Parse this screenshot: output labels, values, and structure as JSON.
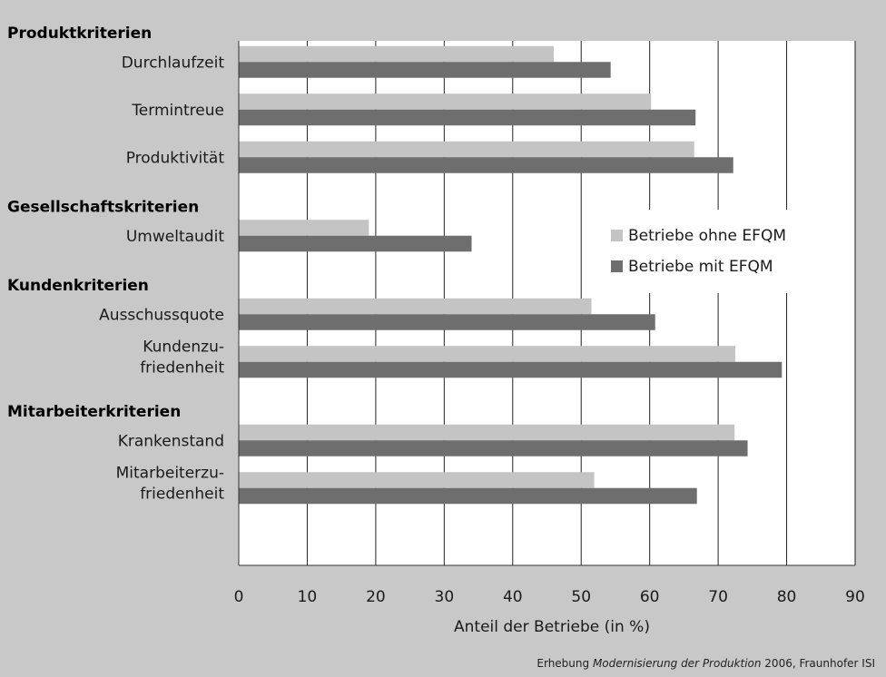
{
  "chart_data": {
    "type": "bar",
    "orientation": "horizontal",
    "xlabel": "Anteil der Betriebe (in %)",
    "xlim": [
      0,
      90
    ],
    "xticks": [
      0,
      10,
      20,
      30,
      40,
      50,
      60,
      70,
      80,
      90
    ],
    "grid": true,
    "legend_position": "right-middle",
    "series": [
      {
        "name": "Betriebe ohne EFQM",
        "color": "#c4c4c4"
      },
      {
        "name": "Betriebe mit EFQM",
        "color": "#6e6e6e"
      }
    ],
    "groups": [
      {
        "label": "Produktkriterien",
        "items": [
          {
            "label": [
              "Durchlaufzeit"
            ],
            "values": [
              46,
              54.3
            ]
          },
          {
            "label": [
              "Termintreue"
            ],
            "values": [
              60.2,
              66.7
            ]
          },
          {
            "label": [
              "Produktivität"
            ],
            "values": [
              66.5,
              72.2
            ]
          }
        ]
      },
      {
        "label": "Gesellschaftskriterien",
        "items": [
          {
            "label": [
              "Umweltaudit"
            ],
            "values": [
              19,
              34
            ]
          }
        ]
      },
      {
        "label": "Kundenkriterien",
        "items": [
          {
            "label": [
              "Ausschussquote"
            ],
            "values": [
              51.5,
              60.8
            ]
          },
          {
            "label": [
              "Kundenzu-",
              "friedenheit"
            ],
            "values": [
              72.5,
              79.3
            ]
          }
        ]
      },
      {
        "label": "Mitarbeiterkriterien",
        "items": [
          {
            "label": [
              "Krankenstand"
            ],
            "values": [
              72.4,
              74.3
            ]
          },
          {
            "label": [
              "Mitarbeiterzu-",
              "friedenheit"
            ],
            "values": [
              51.9,
              66.9
            ]
          }
        ]
      }
    ]
  },
  "source": {
    "prefix": "Erhebung ",
    "title": "Modernisierung der Produktion",
    "suffix": " 2006, Fraunhofer ISI"
  }
}
